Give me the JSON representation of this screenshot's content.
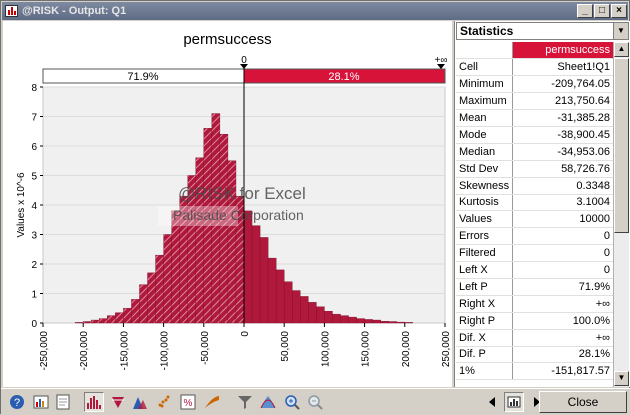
{
  "window": {
    "title": "@RISK - Output: Q1"
  },
  "chart": {
    "title": "permsuccess",
    "delimiter_left": "0",
    "delimiter_right": "+∞",
    "left_pct": "71.9%",
    "right_pct": "28.1%",
    "watermark_line1": "@RISK for Excel",
    "watermark_line2": "Palisade Corporation",
    "colors": {
      "bar": "#b0183c",
      "bar_light": "#d4869a",
      "accent": "#d8133a"
    }
  },
  "chart_data": {
    "type": "bar",
    "ylabel": "Values x 10^-6",
    "ylim": [
      0,
      8
    ],
    "xlim": [
      -250000,
      250000
    ],
    "y_ticks": [
      "0",
      "1",
      "2",
      "3",
      "4",
      "5",
      "6",
      "7",
      "8"
    ],
    "x_ticks": [
      "-250,000",
      "-200,000",
      "-150,000",
      "-100,000",
      "-50,000",
      "0",
      "50,000",
      "100,000",
      "150,000",
      "200,000",
      "250,000"
    ],
    "bin_width": 10000,
    "bin_starts": [
      -210000,
      -200000,
      -190000,
      -180000,
      -170000,
      -160000,
      -150000,
      -140000,
      -130000,
      -120000,
      -110000,
      -100000,
      -90000,
      -80000,
      -70000,
      -60000,
      -50000,
      -40000,
      -30000,
      -20000,
      -10000,
      0,
      10000,
      20000,
      30000,
      40000,
      50000,
      60000,
      70000,
      80000,
      90000,
      100000,
      110000,
      120000,
      130000,
      140000,
      150000,
      160000,
      170000,
      180000,
      190000,
      200000
    ],
    "values": [
      0.02,
      0.05,
      0.1,
      0.15,
      0.25,
      0.35,
      0.5,
      0.8,
      1.3,
      1.7,
      2.3,
      3.0,
      3.8,
      4.3,
      5.0,
      5.6,
      6.6,
      7.1,
      6.4,
      5.5,
      4.3,
      3.8,
      3.3,
      2.9,
      2.2,
      1.8,
      1.4,
      1.1,
      0.9,
      0.7,
      0.55,
      0.4,
      0.3,
      0.25,
      0.2,
      0.15,
      0.12,
      0.1,
      0.06,
      0.05,
      0.03,
      0.02
    ]
  },
  "stats": {
    "header": "Statistics",
    "column": "permsuccess",
    "rows": [
      {
        "label": "Cell",
        "value": "Sheet1!Q1"
      },
      {
        "label": "Minimum",
        "value": "-209,764.05"
      },
      {
        "label": "Maximum",
        "value": "213,750.64"
      },
      {
        "label": "Mean",
        "value": "-31,385.28"
      },
      {
        "label": "Mode",
        "value": "-38,900.45"
      },
      {
        "label": "Median",
        "value": "-34,953.06"
      },
      {
        "label": "Std Dev",
        "value": "58,726.76"
      },
      {
        "label": "Skewness",
        "value": "0.3348"
      },
      {
        "label": "Kurtosis",
        "value": "3.1004"
      },
      {
        "label": "Values",
        "value": "10000"
      },
      {
        "label": "Errors",
        "value": "0"
      },
      {
        "label": "Filtered",
        "value": "0"
      },
      {
        "label": "Left X",
        "value": "0"
      },
      {
        "label": "Left P",
        "value": "71.9%"
      },
      {
        "label": "Right X",
        "value": "+∞"
      },
      {
        "label": "Right P",
        "value": "100.0%"
      },
      {
        "label": "Dif. X",
        "value": "+∞"
      },
      {
        "label": "Dif. P",
        "value": "28.1%"
      },
      {
        "label": "1%",
        "value": "-151,817.57"
      }
    ]
  },
  "toolbar": {
    "close_label": "Close"
  }
}
